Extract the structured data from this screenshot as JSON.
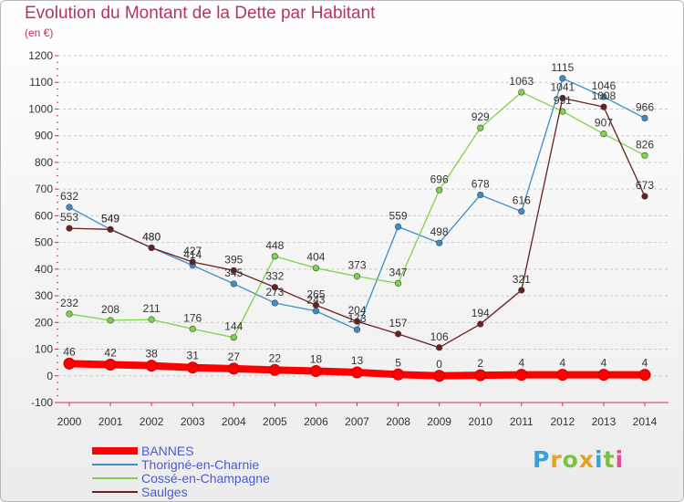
{
  "chart_data": {
    "type": "line",
    "title": "Evolution du Montant de la Dette par Habitant",
    "subtitle": "(en €)",
    "x": [
      "2000",
      "2001",
      "2002",
      "2003",
      "2004",
      "2005",
      "2006",
      "2007",
      "2008",
      "2009",
      "2010",
      "2011",
      "2012",
      "2013",
      "2014"
    ],
    "ylim": [
      -100,
      1200
    ],
    "yticks": [
      -100,
      0,
      100,
      200,
      300,
      400,
      500,
      600,
      700,
      800,
      900,
      1000,
      1100,
      1200
    ],
    "grid": "dashed horizontal",
    "legend_position": "bottom-left",
    "series": [
      {
        "name": "BANNES",
        "color": "#ff0000",
        "emphasis": true,
        "values": [
          46,
          42,
          38,
          31,
          27,
          22,
          18,
          13,
          5,
          0,
          2,
          4,
          4,
          4,
          4
        ]
      },
      {
        "name": "Thorigné-en-Charnie",
        "color": "#3b8ec8",
        "values": [
          632,
          549,
          480,
          414,
          345,
          273,
          243,
          173,
          559,
          498,
          678,
          616,
          1115,
          1046,
          966
        ]
      },
      {
        "name": "Cossé-en-Champagne",
        "color": "#7dd34a",
        "values": [
          232,
          208,
          211,
          176,
          144,
          448,
          404,
          373,
          347,
          696,
          929,
          1063,
          991,
          907,
          826
        ]
      },
      {
        "name": "Saulges",
        "color": "#6b1f1f",
        "values": [
          553,
          549,
          480,
          427,
          395,
          332,
          265,
          204,
          157,
          106,
          194,
          321,
          1041,
          1008,
          673
        ]
      }
    ]
  },
  "logo": {
    "letters": [
      "P",
      "r",
      "o",
      "x",
      "i",
      "t",
      "i"
    ],
    "colors": [
      "#3ca0d8",
      "#e8a020",
      "#7cc242",
      "#e8a020",
      "#3ca0d8",
      "#7cc242",
      "#e84a9a"
    ]
  }
}
